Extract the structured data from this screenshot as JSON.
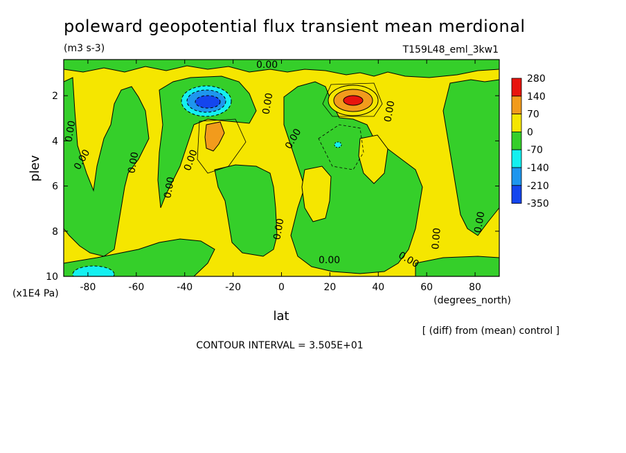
{
  "chart_data": {
    "type": "heatmap",
    "title": "poleward geopotential flux transient mean merdional",
    "units": "(m3 s-3)",
    "run_label": "T159L48_eml_3kw1",
    "xlabel": "lat",
    "x_units": "(degrees_north)",
    "ylabel": "plev",
    "y_units": "(x1E4 Pa)",
    "xlim": [
      -90,
      90
    ],
    "ylim": [
      10,
      0.4
    ],
    "x_ticks": [
      "-80",
      "-60",
      "-40",
      "-20",
      "0",
      "20",
      "40",
      "60",
      "80"
    ],
    "y_ticks": [
      "2",
      "4",
      "6",
      "8",
      "10"
    ],
    "contour_interval_text": "CONTOUR INTERVAL = 3.505E+01",
    "diff_note": "[ (diff) from (mean) control ]",
    "contour_label": "0.00",
    "colorbar": {
      "labels": [
        "280",
        "140",
        "70",
        "0",
        "-70",
        "-140",
        "-210",
        "-350"
      ],
      "colors": [
        "#e8140e",
        "#f29b1c",
        "#f5e600",
        "#35cf2a",
        "#14f0f0",
        "#1e96ee",
        "#1446ee"
      ]
    },
    "features": [
      {
        "name": "positive-max",
        "lat": 29,
        "plev": 2.0,
        "value": 280
      },
      {
        "name": "negative-min",
        "lat": -30,
        "plev": 2.0,
        "value": -210
      },
      {
        "name": "positive-secondary",
        "lat": -28,
        "plev": 3.4,
        "value": 140
      },
      {
        "name": "negative-surface",
        "lat": -78,
        "plev": 9.9,
        "value": -140
      }
    ]
  }
}
